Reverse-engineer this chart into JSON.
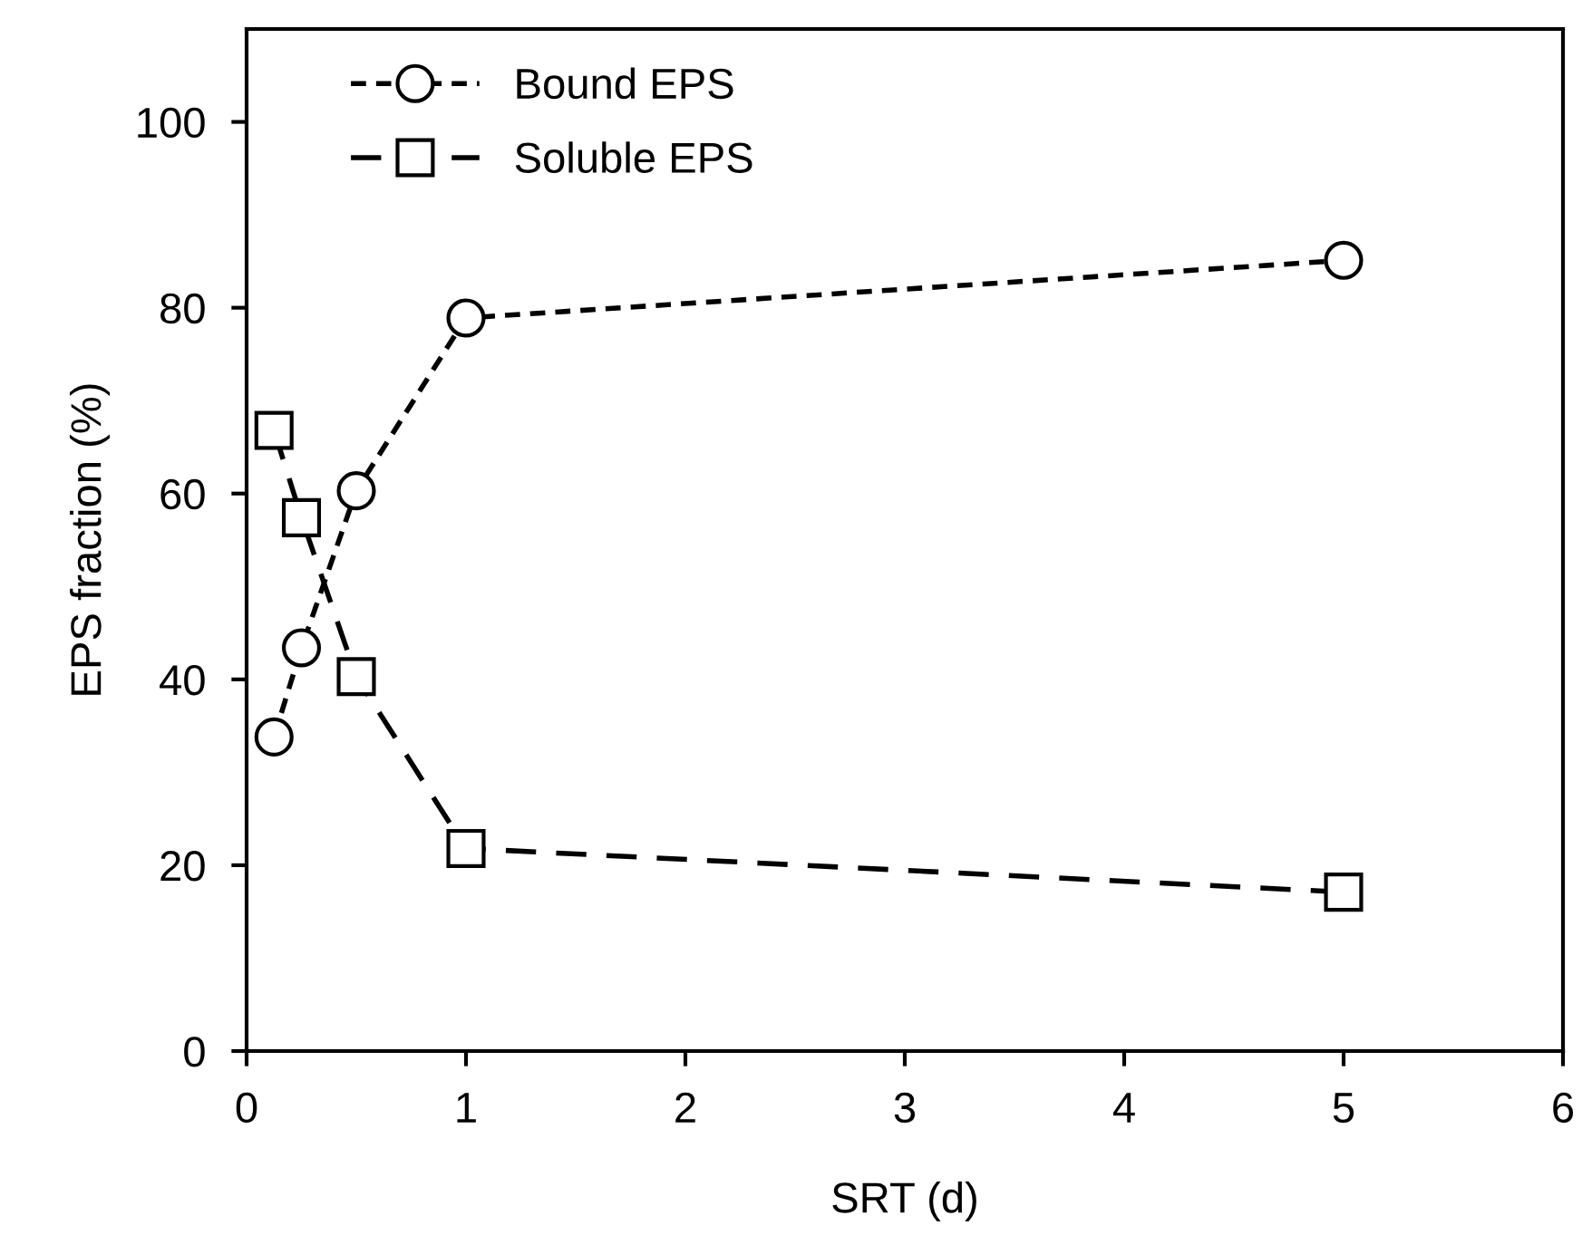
{
  "chart_data": {
    "type": "line",
    "xlabel": "SRT (d)",
    "ylabel": "EPS fraction (%)",
    "x": [
      0.125,
      0.25,
      0.5,
      1,
      5
    ],
    "series": [
      {
        "name": "Bound EPS",
        "color": "#000000",
        "values": [
          33.8,
          43.4,
          60.3,
          78.9,
          85.1
        ],
        "marker": "circle",
        "line_style": "dotted"
      },
      {
        "name": "Soluble EPS",
        "color": "#000000",
        "values": [
          66.8,
          57.4,
          40.3,
          21.8,
          17.1
        ],
        "marker": "square",
        "line_style": "dashed"
      }
    ],
    "xlim": [
      0,
      6
    ],
    "xticks": [
      0,
      1,
      2,
      3,
      4,
      5,
      6
    ],
    "ylim": [
      0,
      110
    ],
    "yticks": [
      0,
      20,
      40,
      60,
      80,
      100
    ],
    "grid": false,
    "legend": "top left"
  }
}
